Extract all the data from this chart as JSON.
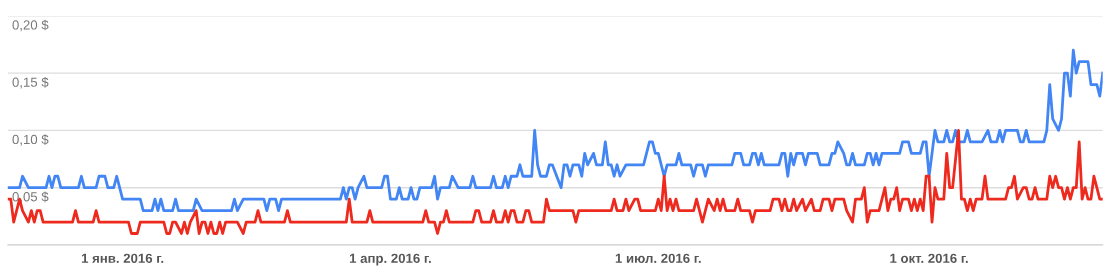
{
  "chart_data": {
    "type": "line",
    "xlim": [
      "2015-11-23",
      "2016-11-29"
    ],
    "ylim": [
      0,
      0.2
    ],
    "xticks": [
      {
        "value": "2016-01-01",
        "label": "1 янв. 2016 г."
      },
      {
        "value": "2016-04-01",
        "label": "1 апр. 2016 г."
      },
      {
        "value": "2016-07-01",
        "label": "1 июл. 2016 г."
      },
      {
        "value": "2016-10-01",
        "label": "1 окт. 2016 г."
      }
    ],
    "yticks": [
      {
        "value": 0,
        "label": null
      },
      {
        "value": 0.05,
        "label": "0,05 $"
      },
      {
        "value": 0.1,
        "label": "0,10 $"
      },
      {
        "value": 0.15,
        "label": "0,15 $"
      },
      {
        "value": 0.2,
        "label": "0,20 $"
      }
    ],
    "grid": "y",
    "marker": "none",
    "line_style": "solid",
    "series": [
      {
        "color": "#4285f4",
        "x": [
          "2015-11-23",
          "2015-11-27",
          "2015-11-28",
          "2015-11-30",
          "2015-12-06",
          "2015-12-07",
          "2015-12-08",
          "2015-12-09",
          "2015-12-10",
          "2015-12-11",
          "2015-12-17",
          "2015-12-18",
          "2015-12-19",
          "2015-12-23",
          "2015-12-24",
          "2015-12-26",
          "2015-12-27",
          "2015-12-29",
          "2015-12-30",
          "2015-12-31",
          "2016-01-01",
          "2016-01-07",
          "2016-01-08",
          "2016-01-11",
          "2016-01-12",
          "2016-01-13",
          "2016-01-14",
          "2016-01-15",
          "2016-01-18",
          "2016-01-19",
          "2016-01-20",
          "2016-01-25",
          "2016-01-26",
          "2016-01-28",
          "2016-02-07",
          "2016-02-08",
          "2016-02-09",
          "2016-02-11",
          "2016-02-18",
          "2016-02-19",
          "2016-02-20",
          "2016-02-22",
          "2016-02-23",
          "2016-02-24",
          "2016-03-15",
          "2016-03-16",
          "2016-03-17",
          "2016-03-18",
          "2016-03-19",
          "2016-03-20",
          "2016-03-21",
          "2016-03-23",
          "2016-03-24",
          "2016-03-29",
          "2016-03-30",
          "2016-03-31",
          "2016-04-01",
          "2016-04-03",
          "2016-04-04",
          "2016-04-05",
          "2016-04-07",
          "2016-04-08",
          "2016-04-09",
          "2016-04-10",
          "2016-04-11",
          "2016-04-15",
          "2016-04-16",
          "2016-04-17",
          "2016-04-18",
          "2016-04-21",
          "2016-04-22",
          "2016-04-24",
          "2016-04-28",
          "2016-04-29",
          "2016-04-30",
          "2016-05-05",
          "2016-05-06",
          "2016-05-07",
          "2016-05-09",
          "2016-05-10",
          "2016-05-11",
          "2016-05-12",
          "2016-05-14",
          "2016-05-15",
          "2016-05-16",
          "2016-05-19",
          "2016-05-20",
          "2016-05-21",
          "2016-05-22",
          "2016-05-24",
          "2016-05-25",
          "2016-05-26",
          "2016-05-29",
          "2016-05-30",
          "2016-05-31",
          "2016-06-01",
          "2016-06-02",
          "2016-06-04",
          "2016-06-05",
          "2016-06-06",
          "2016-06-07",
          "2016-06-09",
          "2016-06-10",
          "2016-06-12",
          "2016-06-13",
          "2016-06-14",
          "2016-06-15",
          "2016-06-16",
          "2016-06-17",
          "2016-06-18",
          "2016-06-20",
          "2016-06-26",
          "2016-06-28",
          "2016-06-29",
          "2016-06-30",
          "2016-07-01",
          "2016-07-03",
          "2016-07-04",
          "2016-07-07",
          "2016-07-08",
          "2016-07-09",
          "2016-07-12",
          "2016-07-13",
          "2016-07-14",
          "2016-07-16",
          "2016-07-17",
          "2016-07-18",
          "2016-07-26",
          "2016-07-27",
          "2016-07-29",
          "2016-07-30",
          "2016-08-01",
          "2016-08-02",
          "2016-08-03",
          "2016-08-04",
          "2016-08-05",
          "2016-08-06",
          "2016-08-11",
          "2016-08-12",
          "2016-08-13",
          "2016-08-14",
          "2016-08-15",
          "2016-08-16",
          "2016-08-17",
          "2016-08-19",
          "2016-08-20",
          "2016-08-21",
          "2016-08-24",
          "2016-08-25",
          "2016-08-28",
          "2016-08-29",
          "2016-08-30",
          "2016-08-31",
          "2016-09-02",
          "2016-09-03",
          "2016-09-04",
          "2016-09-05",
          "2016-09-06",
          "2016-09-09",
          "2016-09-10",
          "2016-09-11",
          "2016-09-12",
          "2016-09-13",
          "2016-09-14",
          "2016-09-15",
          "2016-09-21",
          "2016-09-22",
          "2016-09-24",
          "2016-09-25",
          "2016-09-28",
          "2016-09-29",
          "2016-09-30",
          "2016-10-01",
          "2016-10-02",
          "2016-10-03",
          "2016-10-04",
          "2016-10-06",
          "2016-10-07",
          "2016-10-08",
          "2016-10-09",
          "2016-10-10",
          "2016-10-11",
          "2016-10-13",
          "2016-10-14",
          "2016-10-15",
          "2016-10-19",
          "2016-10-21",
          "2016-10-22",
          "2016-10-24",
          "2016-10-25",
          "2016-10-26",
          "2016-10-27",
          "2016-10-31",
          "2016-11-01",
          "2016-11-02",
          "2016-11-03",
          "2016-11-04",
          "2016-11-09",
          "2016-11-10",
          "2016-11-11",
          "2016-11-12",
          "2016-11-14",
          "2016-11-15",
          "2016-11-16",
          "2016-11-17",
          "2016-11-18",
          "2016-11-19",
          "2016-11-20",
          "2016-11-21",
          "2016-11-24",
          "2016-11-25",
          "2016-11-27",
          "2016-11-28",
          "2016-11-29"
        ],
        "values": [
          0.05,
          0.05,
          0.06,
          0.05,
          0.05,
          0.06,
          0.05,
          0.06,
          0.06,
          0.05,
          0.05,
          0.06,
          0.05,
          0.05,
          0.06,
          0.06,
          0.05,
          0.05,
          0.06,
          0.05,
          0.04,
          0.04,
          0.03,
          0.03,
          0.04,
          0.03,
          0.04,
          0.03,
          0.03,
          0.04,
          0.03,
          0.03,
          0.04,
          0.03,
          0.03,
          0.04,
          0.03,
          0.04,
          0.04,
          0.03,
          0.04,
          0.04,
          0.03,
          0.04,
          0.04,
          0.05,
          0.04,
          0.05,
          0.05,
          0.04,
          0.05,
          0.06,
          0.05,
          0.05,
          0.06,
          0.06,
          0.04,
          0.04,
          0.05,
          0.04,
          0.04,
          0.05,
          0.04,
          0.04,
          0.05,
          0.05,
          0.06,
          0.04,
          0.05,
          0.05,
          0.06,
          0.05,
          0.05,
          0.06,
          0.05,
          0.05,
          0.06,
          0.05,
          0.05,
          0.06,
          0.05,
          0.06,
          0.06,
          0.07,
          0.06,
          0.06,
          0.1,
          0.07,
          0.06,
          0.06,
          0.07,
          0.07,
          0.05,
          0.07,
          0.07,
          0.06,
          0.07,
          0.07,
          0.06,
          0.08,
          0.07,
          0.08,
          0.07,
          0.07,
          0.09,
          0.07,
          0.07,
          0.06,
          0.07,
          0.06,
          0.07,
          0.07,
          0.09,
          0.09,
          0.08,
          0.08,
          0.06,
          0.07,
          0.07,
          0.08,
          0.07,
          0.07,
          0.06,
          0.07,
          0.07,
          0.06,
          0.07,
          0.07,
          0.08,
          0.08,
          0.07,
          0.07,
          0.08,
          0.08,
          0.07,
          0.08,
          0.07,
          0.07,
          0.08,
          0.08,
          0.06,
          0.08,
          0.07,
          0.08,
          0.08,
          0.07,
          0.08,
          0.08,
          0.07,
          0.07,
          0.08,
          0.08,
          0.09,
          0.08,
          0.07,
          0.07,
          0.08,
          0.07,
          0.07,
          0.08,
          0.08,
          0.07,
          0.08,
          0.07,
          0.08,
          0.08,
          0.09,
          0.09,
          0.08,
          0.08,
          0.09,
          0.09,
          0.06,
          0.08,
          0.1,
          0.09,
          0.09,
          0.1,
          0.09,
          0.09,
          0.1,
          0.09,
          0.09,
          0.1,
          0.09,
          0.09,
          0.1,
          0.09,
          0.09,
          0.1,
          0.09,
          0.1,
          0.1,
          0.09,
          0.09,
          0.1,
          0.09,
          0.09,
          0.1,
          0.14,
          0.11,
          0.1,
          0.11,
          0.15,
          0.15,
          0.13,
          0.17,
          0.15,
          0.16,
          0.16,
          0.14,
          0.14,
          0.13,
          0.15
        ]
      },
      {
        "color": "#ee2a1f",
        "x": [
          "2015-11-23",
          "2015-11-24",
          "2015-11-25",
          "2015-11-27",
          "2015-11-28",
          "2015-11-30",
          "2015-12-01",
          "2015-12-02",
          "2015-12-03",
          "2015-12-04",
          "2015-12-05",
          "2015-12-15",
          "2015-12-16",
          "2015-12-17",
          "2015-12-22",
          "2015-12-23",
          "2015-12-24",
          "2016-01-03",
          "2016-01-04",
          "2016-01-06",
          "2016-01-07",
          "2016-01-15",
          "2016-01-16",
          "2016-01-17",
          "2016-01-18",
          "2016-01-19",
          "2016-01-21",
          "2016-01-22",
          "2016-01-23",
          "2016-01-24",
          "2016-01-26",
          "2016-01-27",
          "2016-01-28",
          "2016-01-29",
          "2016-01-30",
          "2016-01-31",
          "2016-02-01",
          "2016-02-02",
          "2016-02-03",
          "2016-02-04",
          "2016-02-05",
          "2016-02-09",
          "2016-02-11",
          "2016-02-12",
          "2016-02-15",
          "2016-02-16",
          "2016-02-17",
          "2016-02-25",
          "2016-02-26",
          "2016-02-27",
          "2016-03-17",
          "2016-03-18",
          "2016-03-19",
          "2016-03-24",
          "2016-03-25",
          "2016-03-26",
          "2016-04-12",
          "2016-04-13",
          "2016-04-14",
          "2016-04-16",
          "2016-04-17",
          "2016-04-18",
          "2016-04-19",
          "2016-04-20",
          "2016-04-21",
          "2016-04-29",
          "2016-04-30",
          "2016-05-01",
          "2016-05-02",
          "2016-05-05",
          "2016-05-06",
          "2016-05-07",
          "2016-05-09",
          "2016-05-10",
          "2016-05-11",
          "2016-05-12",
          "2016-05-13",
          "2016-05-14",
          "2016-05-16",
          "2016-05-17",
          "2016-05-18",
          "2016-05-19",
          "2016-05-23",
          "2016-05-24",
          "2016-05-25",
          "2016-06-02",
          "2016-06-03",
          "2016-06-04",
          "2016-06-15",
          "2016-06-16",
          "2016-06-17",
          "2016-06-19",
          "2016-06-20",
          "2016-06-21",
          "2016-06-23",
          "2016-06-24",
          "2016-06-25",
          "2016-06-30",
          "2016-07-01",
          "2016-07-02",
          "2016-07-03",
          "2016-07-04",
          "2016-07-05",
          "2016-07-06",
          "2016-07-07",
          "2016-07-08",
          "2016-07-13",
          "2016-07-14",
          "2016-07-15",
          "2016-07-16",
          "2016-07-17",
          "2016-07-18",
          "2016-07-20",
          "2016-07-21",
          "2016-07-22",
          "2016-07-23",
          "2016-07-24",
          "2016-07-27",
          "2016-07-28",
          "2016-07-29",
          "2016-08-01",
          "2016-08-02",
          "2016-08-03",
          "2016-08-08",
          "2016-08-09",
          "2016-08-11",
          "2016-08-12",
          "2016-08-13",
          "2016-08-14",
          "2016-08-15",
          "2016-08-16",
          "2016-08-17",
          "2016-08-19",
          "2016-08-20",
          "2016-08-22",
          "2016-08-23",
          "2016-08-25",
          "2016-08-26",
          "2016-08-28",
          "2016-08-29",
          "2016-08-30",
          "2016-08-31",
          "2016-09-01",
          "2016-09-02",
          "2016-09-03",
          "2016-09-05",
          "2016-09-06",
          "2016-09-08",
          "2016-09-09",
          "2016-09-10",
          "2016-09-11",
          "2016-09-14",
          "2016-09-16",
          "2016-09-17",
          "2016-09-18",
          "2016-09-19",
          "2016-09-20",
          "2016-09-21",
          "2016-09-22",
          "2016-09-24",
          "2016-09-25",
          "2016-09-26",
          "2016-09-27",
          "2016-09-28",
          "2016-09-29",
          "2016-09-30",
          "2016-10-01",
          "2016-10-02",
          "2016-10-03",
          "2016-10-04",
          "2016-10-06",
          "2016-10-07",
          "2016-10-08",
          "2016-10-09",
          "2016-10-11",
          "2016-10-12",
          "2016-10-13",
          "2016-10-14",
          "2016-10-15",
          "2016-10-16",
          "2016-10-17",
          "2016-10-19",
          "2016-10-20",
          "2016-10-21",
          "2016-10-27",
          "2016-10-28",
          "2016-10-29",
          "2016-10-30",
          "2016-10-31",
          "2016-11-02",
          "2016-11-03",
          "2016-11-04",
          "2016-11-05",
          "2016-11-06",
          "2016-11-07",
          "2016-11-10",
          "2016-11-11",
          "2016-11-12",
          "2016-11-13",
          "2016-11-14",
          "2016-11-15",
          "2016-11-16",
          "2016-11-17",
          "2016-11-18",
          "2016-11-19",
          "2016-11-20",
          "2016-11-21",
          "2016-11-22",
          "2016-11-23",
          "2016-11-24",
          "2016-11-25",
          "2016-11-26",
          "2016-11-27",
          "2016-11-28",
          "2016-11-29"
        ],
        "values": [
          0.04,
          0.04,
          0.02,
          0.04,
          0.03,
          0.02,
          0.03,
          0.02,
          0.03,
          0.03,
          0.02,
          0.02,
          0.03,
          0.02,
          0.02,
          0.03,
          0.02,
          0.02,
          0.01,
          0.01,
          0.02,
          0.02,
          0.01,
          0.01,
          0.02,
          0.02,
          0.01,
          0.02,
          0.01,
          0.02,
          0.03,
          0.01,
          0.02,
          0.02,
          0.01,
          0.02,
          0.01,
          0.01,
          0.02,
          0.01,
          0.02,
          0.02,
          0.01,
          0.02,
          0.02,
          0.03,
          0.02,
          0.02,
          0.03,
          0.02,
          0.02,
          0.04,
          0.02,
          0.02,
          0.03,
          0.02,
          0.02,
          0.03,
          0.02,
          0.02,
          0.01,
          0.02,
          0.02,
          0.03,
          0.02,
          0.02,
          0.03,
          0.03,
          0.02,
          0.02,
          0.03,
          0.02,
          0.02,
          0.03,
          0.02,
          0.03,
          0.03,
          0.02,
          0.02,
          0.03,
          0.03,
          0.02,
          0.02,
          0.04,
          0.03,
          0.03,
          0.02,
          0.03,
          0.03,
          0.04,
          0.03,
          0.03,
          0.04,
          0.03,
          0.04,
          0.04,
          0.03,
          0.03,
          0.04,
          0.03,
          0.06,
          0.03,
          0.04,
          0.03,
          0.04,
          0.03,
          0.03,
          0.04,
          0.03,
          0.02,
          0.03,
          0.04,
          0.03,
          0.04,
          0.03,
          0.04,
          0.03,
          0.03,
          0.04,
          0.03,
          0.03,
          0.02,
          0.03,
          0.03,
          0.04,
          0.04,
          0.03,
          0.04,
          0.03,
          0.03,
          0.04,
          0.03,
          0.04,
          0.03,
          0.04,
          0.03,
          0.03,
          0.04,
          0.04,
          0.03,
          0.04,
          0.04,
          0.04,
          0.04,
          0.03,
          0.02,
          0.04,
          0.04,
          0.05,
          0.02,
          0.03,
          0.03,
          0.05,
          0.03,
          0.04,
          0.04,
          0.05,
          0.03,
          0.04,
          0.04,
          0.03,
          0.04,
          0.03,
          0.04,
          0.03,
          0.06,
          0.06,
          0.02,
          0.05,
          0.04,
          0.04,
          0.08,
          0.05,
          0.05,
          0.1,
          0.04,
          0.04,
          0.03,
          0.04,
          0.03,
          0.04,
          0.04,
          0.06,
          0.04,
          0.04,
          0.05,
          0.05,
          0.06,
          0.04,
          0.05,
          0.05,
          0.04,
          0.04,
          0.05,
          0.04,
          0.04,
          0.06,
          0.05,
          0.06,
          0.05,
          0.05,
          0.04,
          0.05,
          0.04,
          0.05,
          0.05,
          0.09,
          0.04,
          0.05,
          0.04,
          0.04,
          0.06,
          0.05,
          0.04,
          0.04
        ]
      }
    ]
  }
}
